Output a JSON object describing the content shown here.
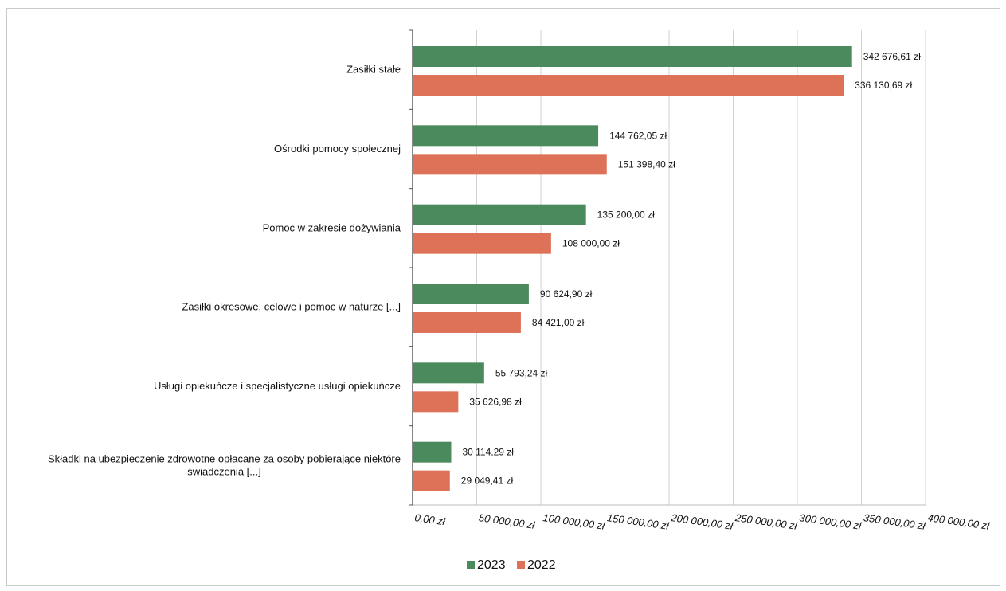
{
  "chart_data": {
    "type": "bar",
    "orientation": "horizontal",
    "title": "",
    "xlabel": "",
    "ylabel": "",
    "xlim": [
      0,
      400000
    ],
    "grid": true,
    "legend_position": "bottom",
    "categories": [
      "Zasiłki stałe",
      "Ośrodki pomocy społecznej",
      "Pomoc w zakresie dożywiania",
      "Zasiłki okresowe, celowe i pomoc w naturze [...]",
      "Usługi opiekuńcze i specjalistyczne usługi opiekuńcze",
      "Składki na ubezpieczenie zdrowotne opłacane za osoby pobierające niektóre świadczenia [...]"
    ],
    "category_lines": [
      [
        "Zasiłki stałe"
      ],
      [
        "Ośrodki pomocy społecznej"
      ],
      [
        "Pomoc w zakresie dożywiania"
      ],
      [
        "Zasiłki okresowe, celowe i pomoc w naturze [...]"
      ],
      [
        "Usługi opiekuńcze i specjalistyczne usługi opiekuńcze"
      ],
      [
        "Składki na ubezpieczenie zdrowotne opłacane za osoby pobierające niektóre",
        "świadczenia [...]"
      ]
    ],
    "series": [
      {
        "name": "2023",
        "color": "#4b8a5c",
        "values": [
          342676.61,
          144762.05,
          135200.0,
          90624.9,
          55793.24,
          30114.29
        ],
        "labels": [
          "342 676,61 zł",
          "144 762,05 zł",
          "135 200,00 zł",
          "90 624,90 zł",
          "55 793,24 zł",
          "30 114,29 zł"
        ]
      },
      {
        "name": "2022",
        "color": "#de7258",
        "values": [
          336130.69,
          151398.4,
          108000.0,
          84421.0,
          35626.98,
          29049.41
        ],
        "labels": [
          "336 130,69 zł",
          "151 398,40 zł",
          "108 000,00 zł",
          "84 421,00 zł",
          "35 626,98 zł",
          "29 049,41 zł"
        ]
      }
    ],
    "ticks": [
      {
        "value": 0,
        "label": "0,00 zł"
      },
      {
        "value": 50000,
        "label": "50 000,00 zł"
      },
      {
        "value": 100000,
        "label": "100 000,00 zł"
      },
      {
        "value": 150000,
        "label": "150 000,00 zł"
      },
      {
        "value": 200000,
        "label": "200 000,00 zł"
      },
      {
        "value": 250000,
        "label": "250 000,00 zł"
      },
      {
        "value": 300000,
        "label": "300 000,00 zł"
      },
      {
        "value": 350000,
        "label": "350 000,00 zł"
      },
      {
        "value": 400000,
        "label": "400 000,00 zł"
      }
    ]
  }
}
